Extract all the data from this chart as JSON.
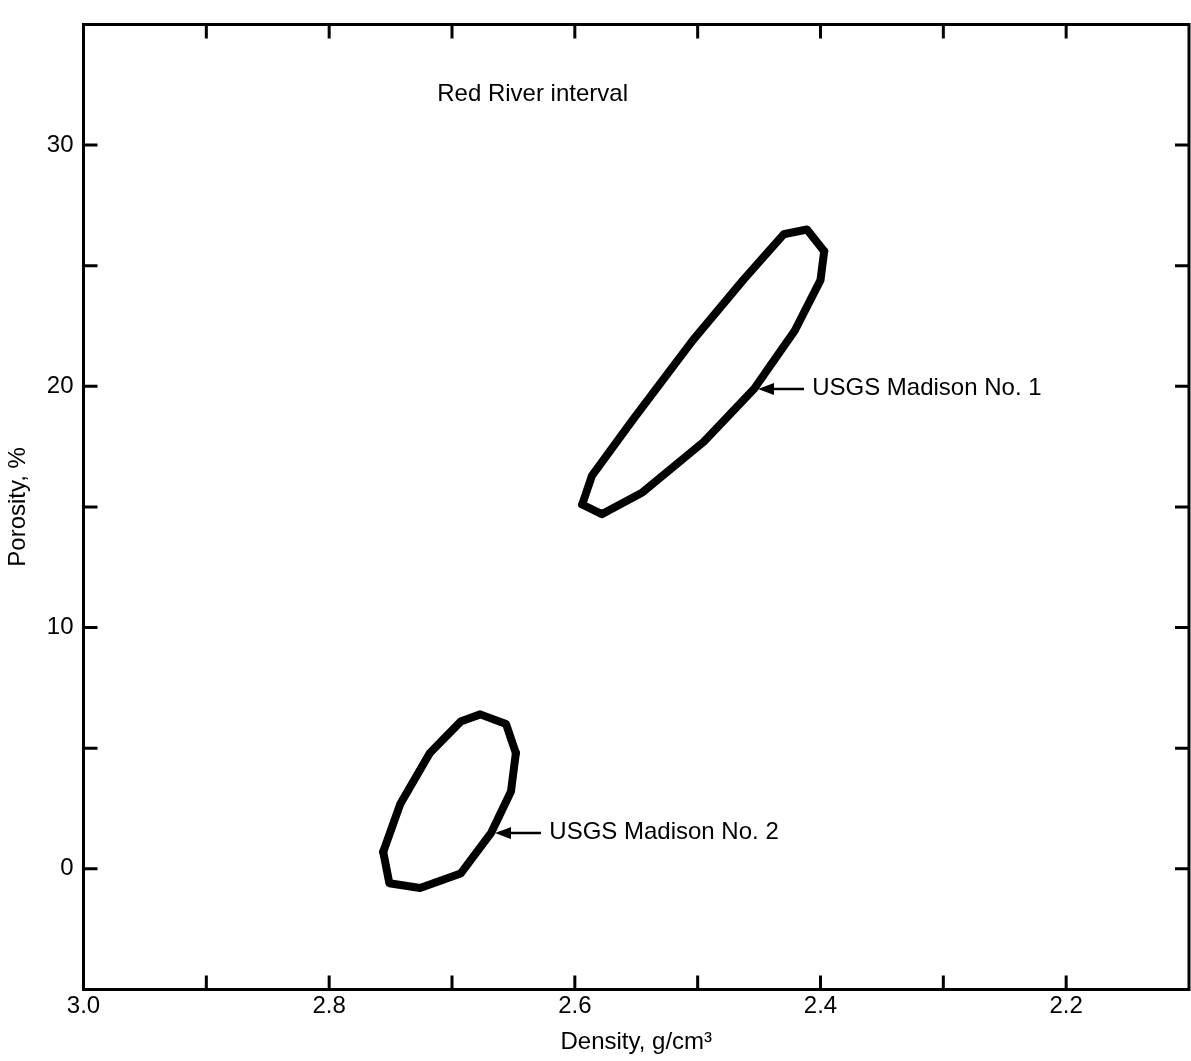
{
  "chart_data": {
    "type": "line",
    "xlabel": "Density, g/cm³",
    "ylabel": "Porosity, %",
    "xlim": [
      3.0,
      2.1
    ],
    "ylim": [
      -5,
      35
    ],
    "xticks": [
      {
        "value": 3.0,
        "label": "3.0"
      },
      {
        "value": 2.9,
        "label": null
      },
      {
        "value": 2.8,
        "label": "2.8"
      },
      {
        "value": 2.7,
        "label": null
      },
      {
        "value": 2.6,
        "label": "2.6"
      },
      {
        "value": 2.5,
        "label": null
      },
      {
        "value": 2.4,
        "label": "2.4"
      },
      {
        "value": 2.3,
        "label": null
      },
      {
        "value": 2.2,
        "label": "2.2"
      }
    ],
    "yticks": [
      {
        "value": -5,
        "label": null
      },
      0,
      {
        "value": 5,
        "label": null
      },
      10,
      {
        "value": 15,
        "label": null
      },
      20,
      {
        "value": 25,
        "label": null
      },
      30
    ],
    "grid": false,
    "legend": false,
    "marker": "none",
    "line_style": "solid",
    "series": [
      {
        "color": "#000000",
        "x": [
          2.397,
          2.4,
          2.421,
          2.454,
          2.495,
          2.545,
          2.578,
          2.594
        ],
        "values": [
          25.6,
          24.4,
          22.3,
          19.9,
          17.7,
          15.6,
          14.7,
          15.1
        ]
      },
      {
        "color": "#000000",
        "x": [
          2.594,
          2.586,
          2.553,
          2.504,
          2.463,
          2.43,
          2.411,
          2.397
        ],
        "values": [
          15.1,
          16.3,
          18.6,
          21.9,
          24.4,
          26.3,
          26.5,
          25.6
        ]
      },
      {
        "color": "#000000",
        "x": [
          2.648,
          2.652,
          2.668,
          2.693,
          2.726,
          2.751,
          2.756
        ],
        "values": [
          4.8,
          3.2,
          1.5,
          -0.2,
          -0.8,
          -0.6,
          0.7
        ]
      },
      {
        "color": "#000000",
        "x": [
          2.756,
          2.742,
          2.718,
          2.693,
          2.677,
          2.656,
          2.648
        ],
        "values": [
          0.7,
          2.7,
          4.8,
          6.1,
          6.4,
          6.0,
          4.8
        ]
      }
    ],
    "annotations": [
      "Red River interval",
      {
        "text": "USGS Madison No. 1",
        "x": 2.454,
        "y": 19.9
      },
      {
        "text": "USGS Madison No. 2",
        "x": 2.668,
        "y": 1.5
      }
    ]
  }
}
